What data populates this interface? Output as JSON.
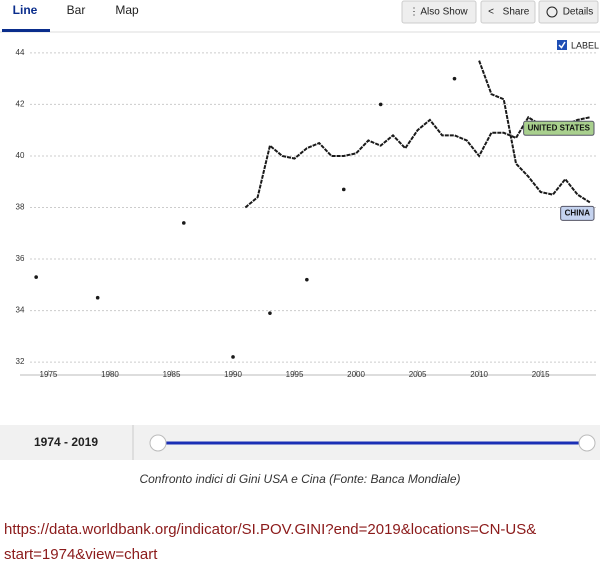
{
  "tabs": [
    "Line",
    "Bar",
    "Map"
  ],
  "buttons": [
    "Also Show",
    "Share",
    "Details"
  ],
  "label_toggle": "LABEL",
  "range": "1974 - 2019",
  "caption": "Confronto indici di Gini USA e Cina (Fonte: Banca Mondiale)",
  "url": [
    "https://data.worldbank.org/indicator/SI.POV.GINI?end=2019&locations=CN-US&",
    "start=1974&view=chart"
  ],
  "chart_data": {
    "type": "line",
    "x": [
      1974,
      1975,
      1976,
      1977,
      1978,
      1979,
      1980,
      1981,
      1982,
      1983,
      1984,
      1985,
      1986,
      1987,
      1988,
      1989,
      1990,
      1991,
      1992,
      1993,
      1994,
      1995,
      1996,
      1997,
      1998,
      1999,
      2000,
      2001,
      2002,
      2003,
      2004,
      2005,
      2006,
      2007,
      2008,
      2009,
      2010,
      2011,
      2012,
      2013,
      2014,
      2015,
      2016,
      2017,
      2018,
      2019
    ],
    "series": [
      {
        "name": "UNITED STATES",
        "color": "#1a1a1a",
        "label_color": "#a9d08e",
        "values": [
          35.3,
          null,
          null,
          null,
          null,
          34.5,
          null,
          null,
          null,
          null,
          null,
          null,
          37.4,
          null,
          null,
          null,
          null,
          38.0,
          38.4,
          40.4,
          40.0,
          39.9,
          40.3,
          40.5,
          40.0,
          40.0,
          40.1,
          40.6,
          40.4,
          40.8,
          40.3,
          41.0,
          41.4,
          40.8,
          40.8,
          40.6,
          40.0,
          40.9,
          40.9,
          40.7,
          41.5,
          41.2,
          41.1,
          41.2,
          41.4,
          41.5
        ]
      },
      {
        "name": "CHINA",
        "color": "#1a1a1a",
        "label_color": "#c5d3ef",
        "values": [
          null,
          null,
          null,
          null,
          null,
          null,
          null,
          null,
          null,
          null,
          null,
          null,
          null,
          null,
          null,
          null,
          32.2,
          null,
          null,
          33.9,
          null,
          null,
          35.2,
          null,
          null,
          38.7,
          null,
          null,
          42.0,
          null,
          null,
          null,
          null,
          null,
          43.0,
          null,
          43.7,
          42.4,
          42.2,
          39.7,
          39.2,
          38.6,
          38.5,
          39.1,
          38.5,
          38.2
        ]
      }
    ],
    "xlim": [
      1973.5,
      2019.5
    ],
    "xticks": [
      1975,
      1980,
      1985,
      1990,
      1995,
      2000,
      2005,
      2010,
      2015
    ],
    "ylim": [
      31.5,
      44.5
    ],
    "yticks": [
      32,
      34,
      36,
      38,
      40,
      42,
      44
    ],
    "grid": true
  }
}
